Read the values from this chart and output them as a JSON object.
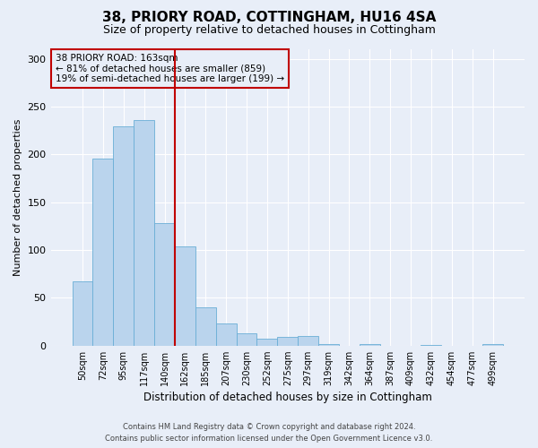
{
  "title1": "38, PRIORY ROAD, COTTINGHAM, HU16 4SA",
  "title2": "Size of property relative to detached houses in Cottingham",
  "xlabel": "Distribution of detached houses by size in Cottingham",
  "ylabel": "Number of detached properties",
  "categories": [
    "50sqm",
    "72sqm",
    "95sqm",
    "117sqm",
    "140sqm",
    "162sqm",
    "185sqm",
    "207sqm",
    "230sqm",
    "252sqm",
    "275sqm",
    "297sqm",
    "319sqm",
    "342sqm",
    "364sqm",
    "387sqm",
    "409sqm",
    "432sqm",
    "454sqm",
    "477sqm",
    "499sqm"
  ],
  "values": [
    67,
    196,
    229,
    236,
    128,
    104,
    40,
    23,
    13,
    7,
    9,
    10,
    2,
    0,
    2,
    0,
    0,
    1,
    0,
    0,
    2
  ],
  "bar_color": "#bad4ed",
  "bar_edge_color": "#6aaed6",
  "vline_x": 4.5,
  "vline_color": "#c00000",
  "annotation_text": "38 PRIORY ROAD: 163sqm\n← 81% of detached houses are smaller (859)\n19% of semi-detached houses are larger (199) →",
  "annotation_box_color": "#c00000",
  "footer1": "Contains HM Land Registry data © Crown copyright and database right 2024.",
  "footer2": "Contains public sector information licensed under the Open Government Licence v3.0.",
  "ylim": [
    0,
    310
  ],
  "yticks": [
    0,
    50,
    100,
    150,
    200,
    250,
    300
  ],
  "background_color": "#e8eef8",
  "grid_color": "#ffffff",
  "title1_fontsize": 11,
  "title2_fontsize": 9
}
